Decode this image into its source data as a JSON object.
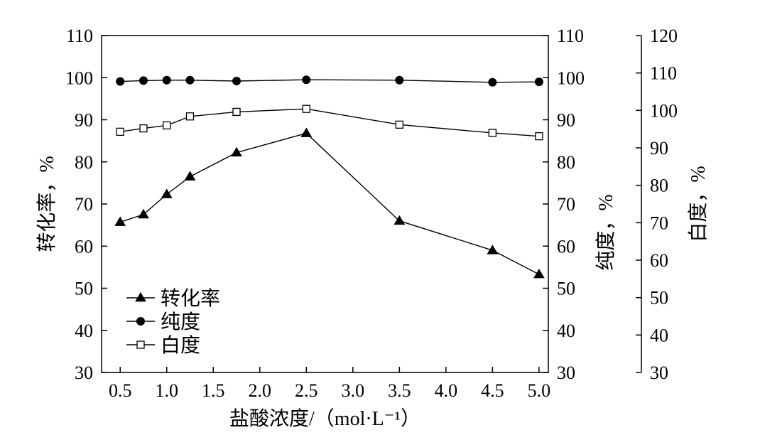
{
  "chart_data": {
    "type": "line",
    "xlabel": "盐酸浓度/（mol·L⁻¹）",
    "x": [
      0.5,
      0.75,
      1.0,
      1.25,
      1.75,
      2.5,
      3.5,
      4.5,
      5.0
    ],
    "x_ticks": [
      "0.5",
      "1.0",
      "1.5",
      "2.0",
      "2.5",
      "3.0",
      "3.5",
      "4.0",
      "4.5",
      "5.0"
    ],
    "xlim": [
      0.3,
      5.1
    ],
    "y_axes": [
      {
        "id": "left",
        "label": "转化率，%",
        "ylim": [
          30,
          110
        ],
        "ticks": [
          30,
          40,
          50,
          60,
          70,
          80,
          90,
          100,
          110
        ]
      },
      {
        "id": "right1",
        "label": "纯度，%",
        "ylim": [
          30,
          110
        ],
        "ticks": [
          30,
          40,
          50,
          60,
          70,
          80,
          90,
          100,
          110
        ]
      },
      {
        "id": "right2",
        "label": "白度，%",
        "ylim": [
          30,
          120
        ],
        "ticks": [
          30,
          40,
          50,
          60,
          70,
          80,
          90,
          100,
          110,
          120
        ]
      }
    ],
    "series": [
      {
        "name": "转化率",
        "axis": "left",
        "marker": "filled-triangle",
        "values": [
          65.7,
          67.5,
          72.3,
          76.5,
          82.2,
          86.8,
          66.0,
          59.0,
          53.3
        ]
      },
      {
        "name": "纯度",
        "axis": "right1",
        "marker": "filled-circle",
        "values": [
          99.1,
          99.3,
          99.4,
          99.4,
          99.2,
          99.5,
          99.4,
          98.9,
          99.0
        ]
      },
      {
        "name": "白度",
        "axis": "right2",
        "marker": "open-square",
        "values": [
          94.3,
          95.2,
          96.0,
          98.4,
          99.6,
          100.4,
          96.2,
          94.0,
          93.1
        ]
      }
    ],
    "grid": false,
    "legend_position": "lower-left"
  }
}
